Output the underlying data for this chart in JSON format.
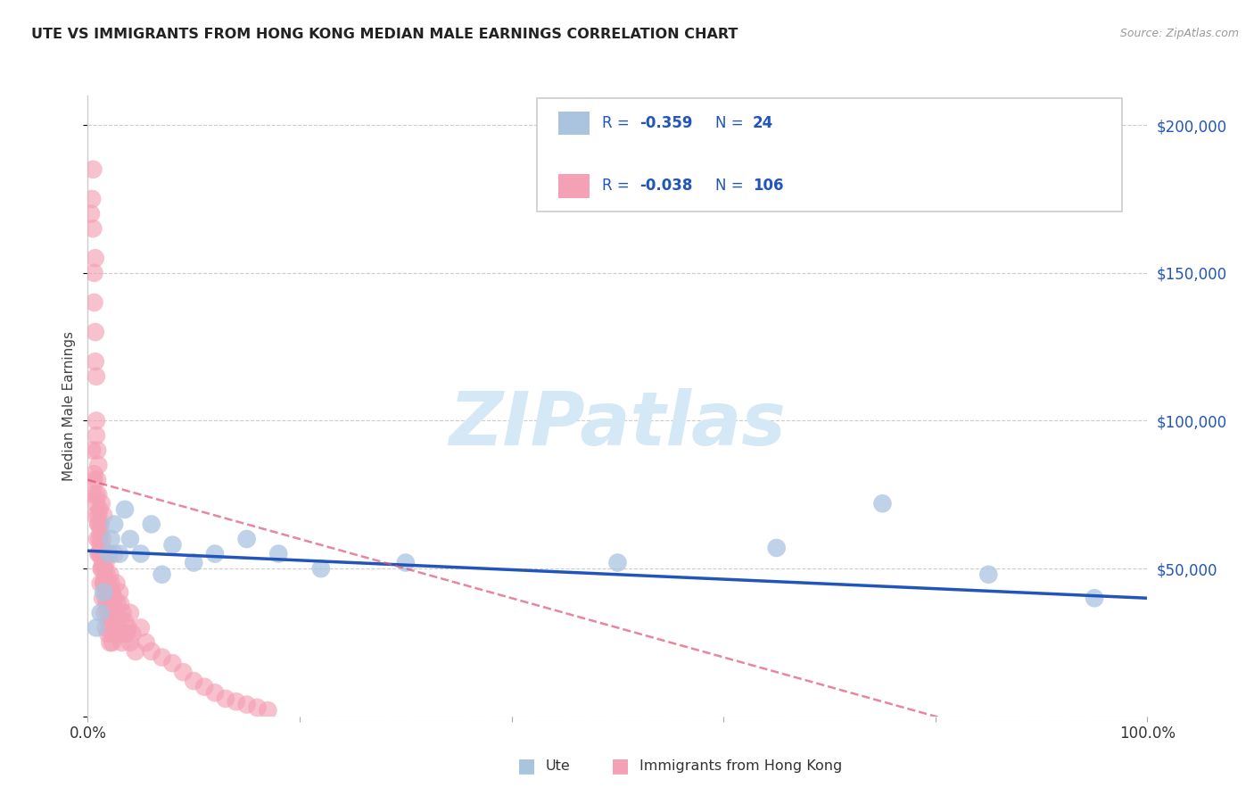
{
  "title": "UTE VS IMMIGRANTS FROM HONG KONG MEDIAN MALE EARNINGS CORRELATION CHART",
  "source": "Source: ZipAtlas.com",
  "ylabel": "Median Male Earnings",
  "xlim": [
    0.0,
    100.0
  ],
  "ylim": [
    0,
    210000
  ],
  "yticks": [
    0,
    50000,
    100000,
    150000,
    200000
  ],
  "ytick_labels": [
    "",
    "$50,000",
    "$100,000",
    "$150,000",
    "$200,000"
  ],
  "grid_color": "#cccccc",
  "bg_color": "#ffffff",
  "watermark": "ZIPatlas",
  "ute_color": "#aac4e0",
  "ute_line_color": "#2255bb",
  "hk_color": "#f4a0b5",
  "hk_line_color": "#dd5577",
  "legend_text_color": "#2255bb",
  "ute_R": "-0.359",
  "ute_N": "24",
  "hk_R": "-0.038",
  "hk_N": "106",
  "ute_x": [
    0.8,
    1.5,
    2.0,
    2.2,
    2.5,
    3.0,
    3.5,
    4.0,
    5.0,
    6.0,
    7.0,
    8.0,
    10.0,
    12.0,
    15.0,
    18.0,
    22.0,
    30.0,
    50.0,
    65.0,
    75.0,
    85.0,
    95.0,
    1.2
  ],
  "ute_y": [
    30000,
    42000,
    55000,
    60000,
    65000,
    55000,
    70000,
    60000,
    55000,
    65000,
    48000,
    58000,
    52000,
    55000,
    60000,
    55000,
    50000,
    52000,
    52000,
    57000,
    72000,
    48000,
    40000,
    35000
  ],
  "hk_x": [
    0.3,
    0.4,
    0.5,
    0.5,
    0.6,
    0.6,
    0.7,
    0.7,
    0.7,
    0.8,
    0.8,
    0.8,
    0.9,
    0.9,
    1.0,
    1.0,
    1.0,
    1.0,
    1.1,
    1.1,
    1.2,
    1.2,
    1.2,
    1.3,
    1.3,
    1.4,
    1.4,
    1.5,
    1.5,
    1.5,
    1.6,
    1.6,
    1.7,
    1.7,
    1.8,
    1.8,
    1.9,
    1.9,
    2.0,
    2.0,
    2.0,
    2.1,
    2.1,
    2.2,
    2.2,
    2.3,
    2.3,
    2.4,
    2.5,
    2.5,
    2.6,
    2.7,
    2.8,
    2.9,
    3.0,
    3.0,
    3.1,
    3.2,
    3.3,
    3.5,
    3.6,
    3.8,
    4.0,
    4.0,
    4.2,
    4.5,
    5.0,
    5.5,
    6.0,
    7.0,
    8.0,
    9.0,
    10.0,
    11.0,
    12.0,
    13.0,
    14.0,
    15.0,
    16.0,
    17.0,
    0.5,
    0.7,
    0.9,
    1.1,
    1.3,
    1.5,
    1.7,
    1.9,
    2.1,
    2.3,
    0.6,
    0.8,
    1.0,
    1.2,
    1.4,
    1.6,
    1.8,
    2.0,
    2.2,
    2.4,
    0.4,
    0.6,
    0.8,
    1.0,
    1.2,
    1.4
  ],
  "hk_y": [
    170000,
    175000,
    185000,
    165000,
    150000,
    140000,
    130000,
    155000,
    120000,
    100000,
    115000,
    95000,
    90000,
    80000,
    85000,
    75000,
    65000,
    55000,
    70000,
    60000,
    55000,
    65000,
    45000,
    72000,
    50000,
    60000,
    40000,
    55000,
    68000,
    45000,
    50000,
    35000,
    52000,
    30000,
    48000,
    38000,
    45000,
    28000,
    55000,
    42000,
    32000,
    48000,
    25000,
    45000,
    38000,
    42000,
    30000,
    38000,
    55000,
    40000,
    35000,
    45000,
    38000,
    32000,
    42000,
    28000,
    38000,
    25000,
    35000,
    32000,
    28000,
    30000,
    35000,
    25000,
    28000,
    22000,
    30000,
    25000,
    22000,
    20000,
    18000,
    15000,
    12000,
    10000,
    8000,
    6000,
    5000,
    4000,
    3000,
    2000,
    75000,
    68000,
    60000,
    55000,
    50000,
    45000,
    40000,
    35000,
    30000,
    25000,
    80000,
    72000,
    65000,
    58000,
    52000,
    47000,
    42000,
    37000,
    32000,
    28000,
    90000,
    82000,
    75000,
    68000,
    62000,
    55000
  ]
}
